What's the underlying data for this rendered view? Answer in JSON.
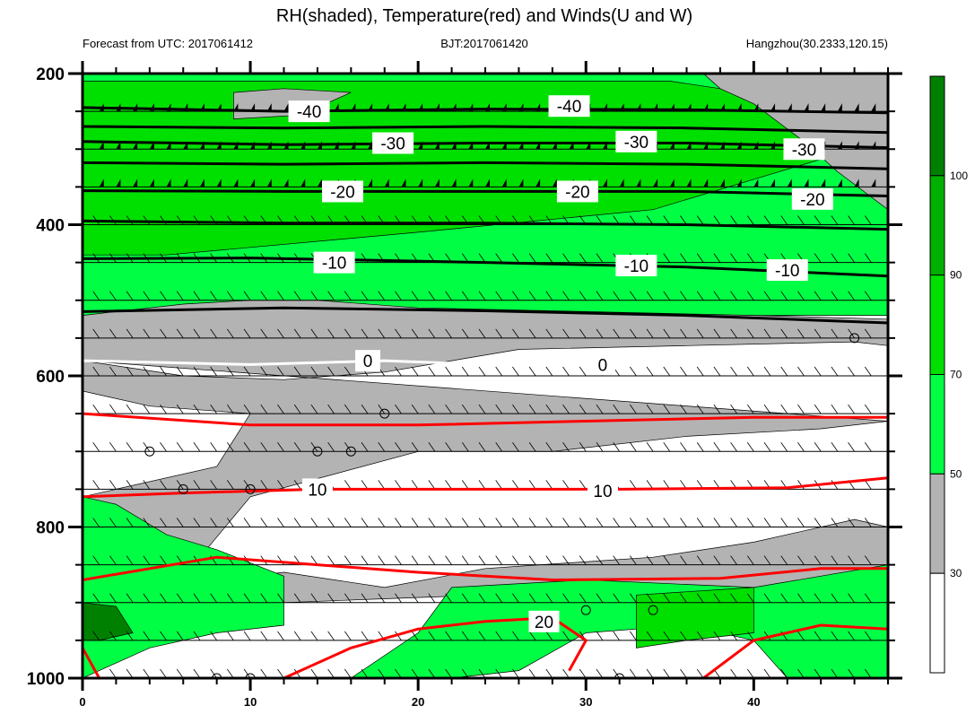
{
  "title": "RH(shaded), Temperature(red) and Winds(U and W)",
  "subtitle": {
    "left": "Forecast from UTC: 2017061412",
    "center": "BJT:2017061420",
    "right": "Hangzhou(30.2333,120.15)"
  },
  "chart_data": {
    "type": "heatmap",
    "x": {
      "range": [
        0,
        48
      ],
      "ticks": [
        0,
        10,
        20,
        30,
        40
      ],
      "minor_step": 2
    },
    "y": {
      "range": [
        200,
        1000
      ],
      "ticks": [
        200,
        400,
        600,
        800,
        1000
      ],
      "inverted": true,
      "minor_levels": [
        250,
        300,
        350,
        450,
        500,
        550,
        650,
        700,
        750,
        850,
        900,
        950
      ]
    },
    "colorbar": {
      "labels": [
        "30",
        "50",
        "70",
        "90",
        "100"
      ],
      "bins": [
        {
          "min": 0,
          "max": 30,
          "color": "#ffffff"
        },
        {
          "min": 30,
          "max": 50,
          "color": "#b3b3b3"
        },
        {
          "min": 50,
          "max": 70,
          "color": "#00ff44"
        },
        {
          "min": 70,
          "max": 90,
          "color": "#00e000"
        },
        {
          "min": 90,
          "max": 100,
          "color": "#00b000"
        },
        {
          "min": 100,
          "max": 110,
          "color": "#008000"
        }
      ]
    },
    "rh_regions": [
      {
        "rh_bin": 50,
        "polygon": [
          [
            0,
            200
          ],
          [
            48,
            200
          ],
          [
            48,
            520
          ],
          [
            0,
            520
          ]
        ]
      },
      {
        "rh_bin": 70,
        "polygon": [
          [
            0,
            210
          ],
          [
            35,
            210
          ],
          [
            44,
            240
          ],
          [
            46,
            300
          ],
          [
            40,
            340
          ],
          [
            34,
            380
          ],
          [
            20,
            410
          ],
          [
            10,
            430
          ],
          [
            5,
            440
          ],
          [
            0,
            440
          ]
        ]
      },
      {
        "rh_bin": 30,
        "polygon": [
          [
            37,
            200
          ],
          [
            48,
            200
          ],
          [
            48,
            380
          ],
          [
            45,
            330
          ],
          [
            43,
            290
          ],
          [
            40,
            240
          ],
          [
            38,
            220
          ]
        ]
      },
      {
        "rh_bin": 30,
        "polygon": [
          [
            9,
            225
          ],
          [
            12,
            220
          ],
          [
            16,
            225
          ],
          [
            13,
            255
          ],
          [
            9,
            260
          ]
        ]
      },
      {
        "rh_bin": 30,
        "polygon": [
          [
            0,
            520
          ],
          [
            6,
            505
          ],
          [
            10,
            500
          ],
          [
            14,
            500
          ],
          [
            20,
            510
          ],
          [
            30,
            515
          ],
          [
            40,
            520
          ],
          [
            48,
            525
          ],
          [
            48,
            980
          ],
          [
            42,
            960
          ],
          [
            38,
            930
          ],
          [
            32,
            910
          ],
          [
            24,
            890
          ],
          [
            18,
            895
          ],
          [
            12,
            900
          ],
          [
            6,
            910
          ],
          [
            3,
            890
          ],
          [
            1,
            860
          ],
          [
            0,
            760
          ]
        ]
      },
      {
        "rh_bin": 0,
        "polygon": [
          [
            0,
            580
          ],
          [
            6,
            600
          ],
          [
            12,
            605
          ],
          [
            18,
            595
          ],
          [
            26,
            565
          ],
          [
            36,
            560
          ],
          [
            46,
            555
          ],
          [
            48,
            560
          ],
          [
            48,
            800
          ],
          [
            46,
            790
          ],
          [
            40,
            820
          ],
          [
            34,
            840
          ],
          [
            24,
            855
          ],
          [
            18,
            880
          ],
          [
            12,
            860
          ],
          [
            8,
            870
          ],
          [
            7,
            840
          ],
          [
            10,
            760
          ],
          [
            20,
            700
          ],
          [
            28,
            700
          ],
          [
            36,
            680
          ],
          [
            44,
            670
          ],
          [
            48,
            660
          ]
        ]
      },
      {
        "rh_bin": 0,
        "polygon": [
          [
            0,
            620
          ],
          [
            4,
            640
          ],
          [
            10,
            650
          ],
          [
            8,
            720
          ],
          [
            0,
            760
          ]
        ]
      },
      {
        "rh_bin": 50,
        "polygon": [
          [
            0,
            760
          ],
          [
            2,
            770
          ],
          [
            5,
            810
          ],
          [
            8,
            830
          ],
          [
            12,
            865
          ],
          [
            12,
            930
          ],
          [
            8,
            940
          ],
          [
            4,
            960
          ],
          [
            0,
            1000
          ]
        ]
      },
      {
        "rh_bin": 50,
        "polygon": [
          [
            22,
            880
          ],
          [
            30,
            870
          ],
          [
            40,
            880
          ],
          [
            48,
            850
          ],
          [
            48,
            1000
          ],
          [
            42,
            1000
          ],
          [
            40,
            950
          ],
          [
            36,
            930
          ],
          [
            30,
            940
          ],
          [
            26,
            990
          ],
          [
            22,
            1000
          ],
          [
            16,
            1000
          ],
          [
            20,
            940
          ]
        ]
      },
      {
        "rh_bin": 70,
        "polygon": [
          [
            33,
            890
          ],
          [
            40,
            880
          ],
          [
            40,
            940
          ],
          [
            36,
            950
          ],
          [
            33,
            960
          ]
        ]
      },
      {
        "rh_bin": 100,
        "polygon": [
          [
            0,
            900
          ],
          [
            2,
            905
          ],
          [
            3,
            940
          ],
          [
            1,
            950
          ],
          [
            0,
            950
          ]
        ]
      }
    ],
    "temperature_contours": [
      {
        "value": -40,
        "label": "-40",
        "color": "#000000",
        "points": [
          [
            0,
            245
          ],
          [
            12,
            250
          ],
          [
            24,
            247
          ],
          [
            36,
            248
          ],
          [
            48,
            252
          ]
        ],
        "label_at": [
          [
            13.5,
            250
          ],
          [
            29,
            243
          ]
        ]
      },
      {
        "value": -40,
        "label": "",
        "color": "#000000",
        "points": [
          [
            0,
            270
          ],
          [
            12,
            272
          ],
          [
            24,
            270
          ],
          [
            36,
            272
          ],
          [
            48,
            278
          ]
        ],
        "label_at": []
      },
      {
        "value": -30,
        "label": "-30",
        "color": "#000000",
        "points": [
          [
            0,
            290
          ],
          [
            12,
            294
          ],
          [
            24,
            292
          ],
          [
            36,
            292
          ],
          [
            48,
            298
          ]
        ],
        "label_at": [
          [
            18.5,
            292
          ],
          [
            33,
            290
          ],
          [
            43,
            300
          ]
        ]
      },
      {
        "value": -30,
        "label": "",
        "color": "#000000",
        "points": [
          [
            0,
            318
          ],
          [
            12,
            320
          ],
          [
            24,
            318
          ],
          [
            36,
            320
          ],
          [
            48,
            326
          ]
        ],
        "label_at": []
      },
      {
        "value": -20,
        "label": "-20",
        "color": "#000000",
        "points": [
          [
            0,
            355
          ],
          [
            12,
            356
          ],
          [
            24,
            356
          ],
          [
            36,
            356
          ],
          [
            48,
            362
          ]
        ],
        "label_at": [
          [
            15.5,
            356
          ],
          [
            29.5,
            356
          ],
          [
            43.5,
            366
          ]
        ]
      },
      {
        "value": -20,
        "label": "",
        "color": "#000000",
        "points": [
          [
            0,
            395
          ],
          [
            12,
            398
          ],
          [
            24,
            398
          ],
          [
            36,
            400
          ],
          [
            48,
            406
          ]
        ],
        "label_at": []
      },
      {
        "value": -10,
        "label": "-10",
        "color": "#000000",
        "points": [
          [
            0,
            445
          ],
          [
            10,
            444
          ],
          [
            24,
            450
          ],
          [
            36,
            456
          ],
          [
            48,
            468
          ]
        ],
        "label_at": [
          [
            15,
            450
          ],
          [
            33,
            454
          ],
          [
            42,
            460
          ]
        ]
      },
      {
        "value": -10,
        "label": "",
        "color": "#000000",
        "points": [
          [
            0,
            515
          ],
          [
            12,
            510
          ],
          [
            24,
            514
          ],
          [
            36,
            520
          ],
          [
            48,
            530
          ]
        ],
        "label_at": []
      },
      {
        "value": 0,
        "label": "0",
        "color": "#ffffff",
        "points": [
          [
            0,
            580
          ],
          [
            10,
            585
          ],
          [
            18,
            580
          ],
          [
            24,
            585
          ],
          [
            36,
            585
          ],
          [
            48,
            585
          ]
        ],
        "label_at": [
          [
            17,
            580
          ],
          [
            31,
            585
          ]
        ]
      },
      {
        "value": 5,
        "label": "",
        "color": "#ff0000",
        "points": [
          [
            0,
            650
          ],
          [
            10,
            665
          ],
          [
            20,
            665
          ],
          [
            30,
            660
          ],
          [
            40,
            655
          ],
          [
            48,
            655
          ]
        ],
        "label_at": []
      },
      {
        "value": 10,
        "label": "10",
        "color": "#ff0000",
        "points": [
          [
            0,
            760
          ],
          [
            6,
            755
          ],
          [
            14,
            750
          ],
          [
            22,
            750
          ],
          [
            32,
            750
          ],
          [
            42,
            748
          ],
          [
            48,
            735
          ]
        ],
        "label_at": [
          [
            14,
            750
          ],
          [
            31,
            752
          ]
        ]
      },
      {
        "value": 15,
        "label": "",
        "color": "#ff0000",
        "points": [
          [
            0,
            870
          ],
          [
            8,
            840
          ],
          [
            20,
            860
          ],
          [
            28,
            870
          ],
          [
            38,
            868
          ],
          [
            44,
            855
          ],
          [
            48,
            855
          ]
        ],
        "label_at": []
      },
      {
        "value": 20,
        "label": "20",
        "color": "#ff0000",
        "points": [
          [
            12,
            1000
          ],
          [
            16,
            960
          ],
          [
            20,
            935
          ],
          [
            24,
            925
          ],
          [
            28,
            920
          ],
          [
            30,
            950
          ],
          [
            29,
            990
          ]
        ],
        "label_at": [
          [
            27.5,
            925
          ]
        ]
      },
      {
        "value": 20,
        "label": "",
        "color": "#ff0000",
        "points": [
          [
            0,
            960
          ],
          [
            1,
            1000
          ]
        ],
        "label_at": []
      },
      {
        "value": 20,
        "label": "",
        "color": "#ff0000",
        "points": [
          [
            37,
            1000
          ],
          [
            40,
            950
          ],
          [
            44,
            930
          ],
          [
            48,
            935
          ]
        ],
        "label_at": []
      }
    ],
    "vertical_motion_circles": [
      [
        18,
        650
      ],
      [
        4,
        700
      ],
      [
        14,
        700
      ],
      [
        16,
        700
      ],
      [
        6,
        750
      ],
      [
        10,
        750
      ],
      [
        46,
        550
      ],
      [
        30,
        910
      ],
      [
        34,
        910
      ],
      [
        8,
        1000
      ],
      [
        10,
        1000
      ],
      [
        32,
        1000
      ]
    ]
  }
}
